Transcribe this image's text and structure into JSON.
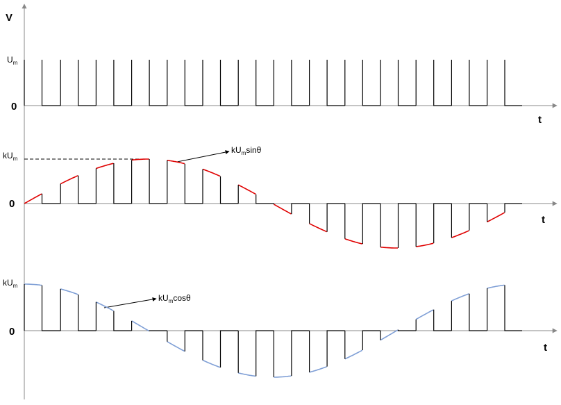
{
  "axis_label": "V",
  "panels": [
    {
      "level_label": {
        "main": "U",
        "sub": "m"
      },
      "zero_label": "0",
      "time_label": "t"
    },
    {
      "level_label": {
        "main": "kU",
        "sub": "m"
      },
      "zero_label": "0",
      "time_label": "t",
      "annotation": {
        "main": "kU",
        "sub": "m",
        "tail": "sinθ"
      }
    },
    {
      "level_label": {
        "main": "kU",
        "sub": "m"
      },
      "zero_label": "0",
      "time_label": "t",
      "annotation": {
        "main": "kU",
        "sub": "m",
        "tail": "cosθ"
      }
    }
  ]
}
